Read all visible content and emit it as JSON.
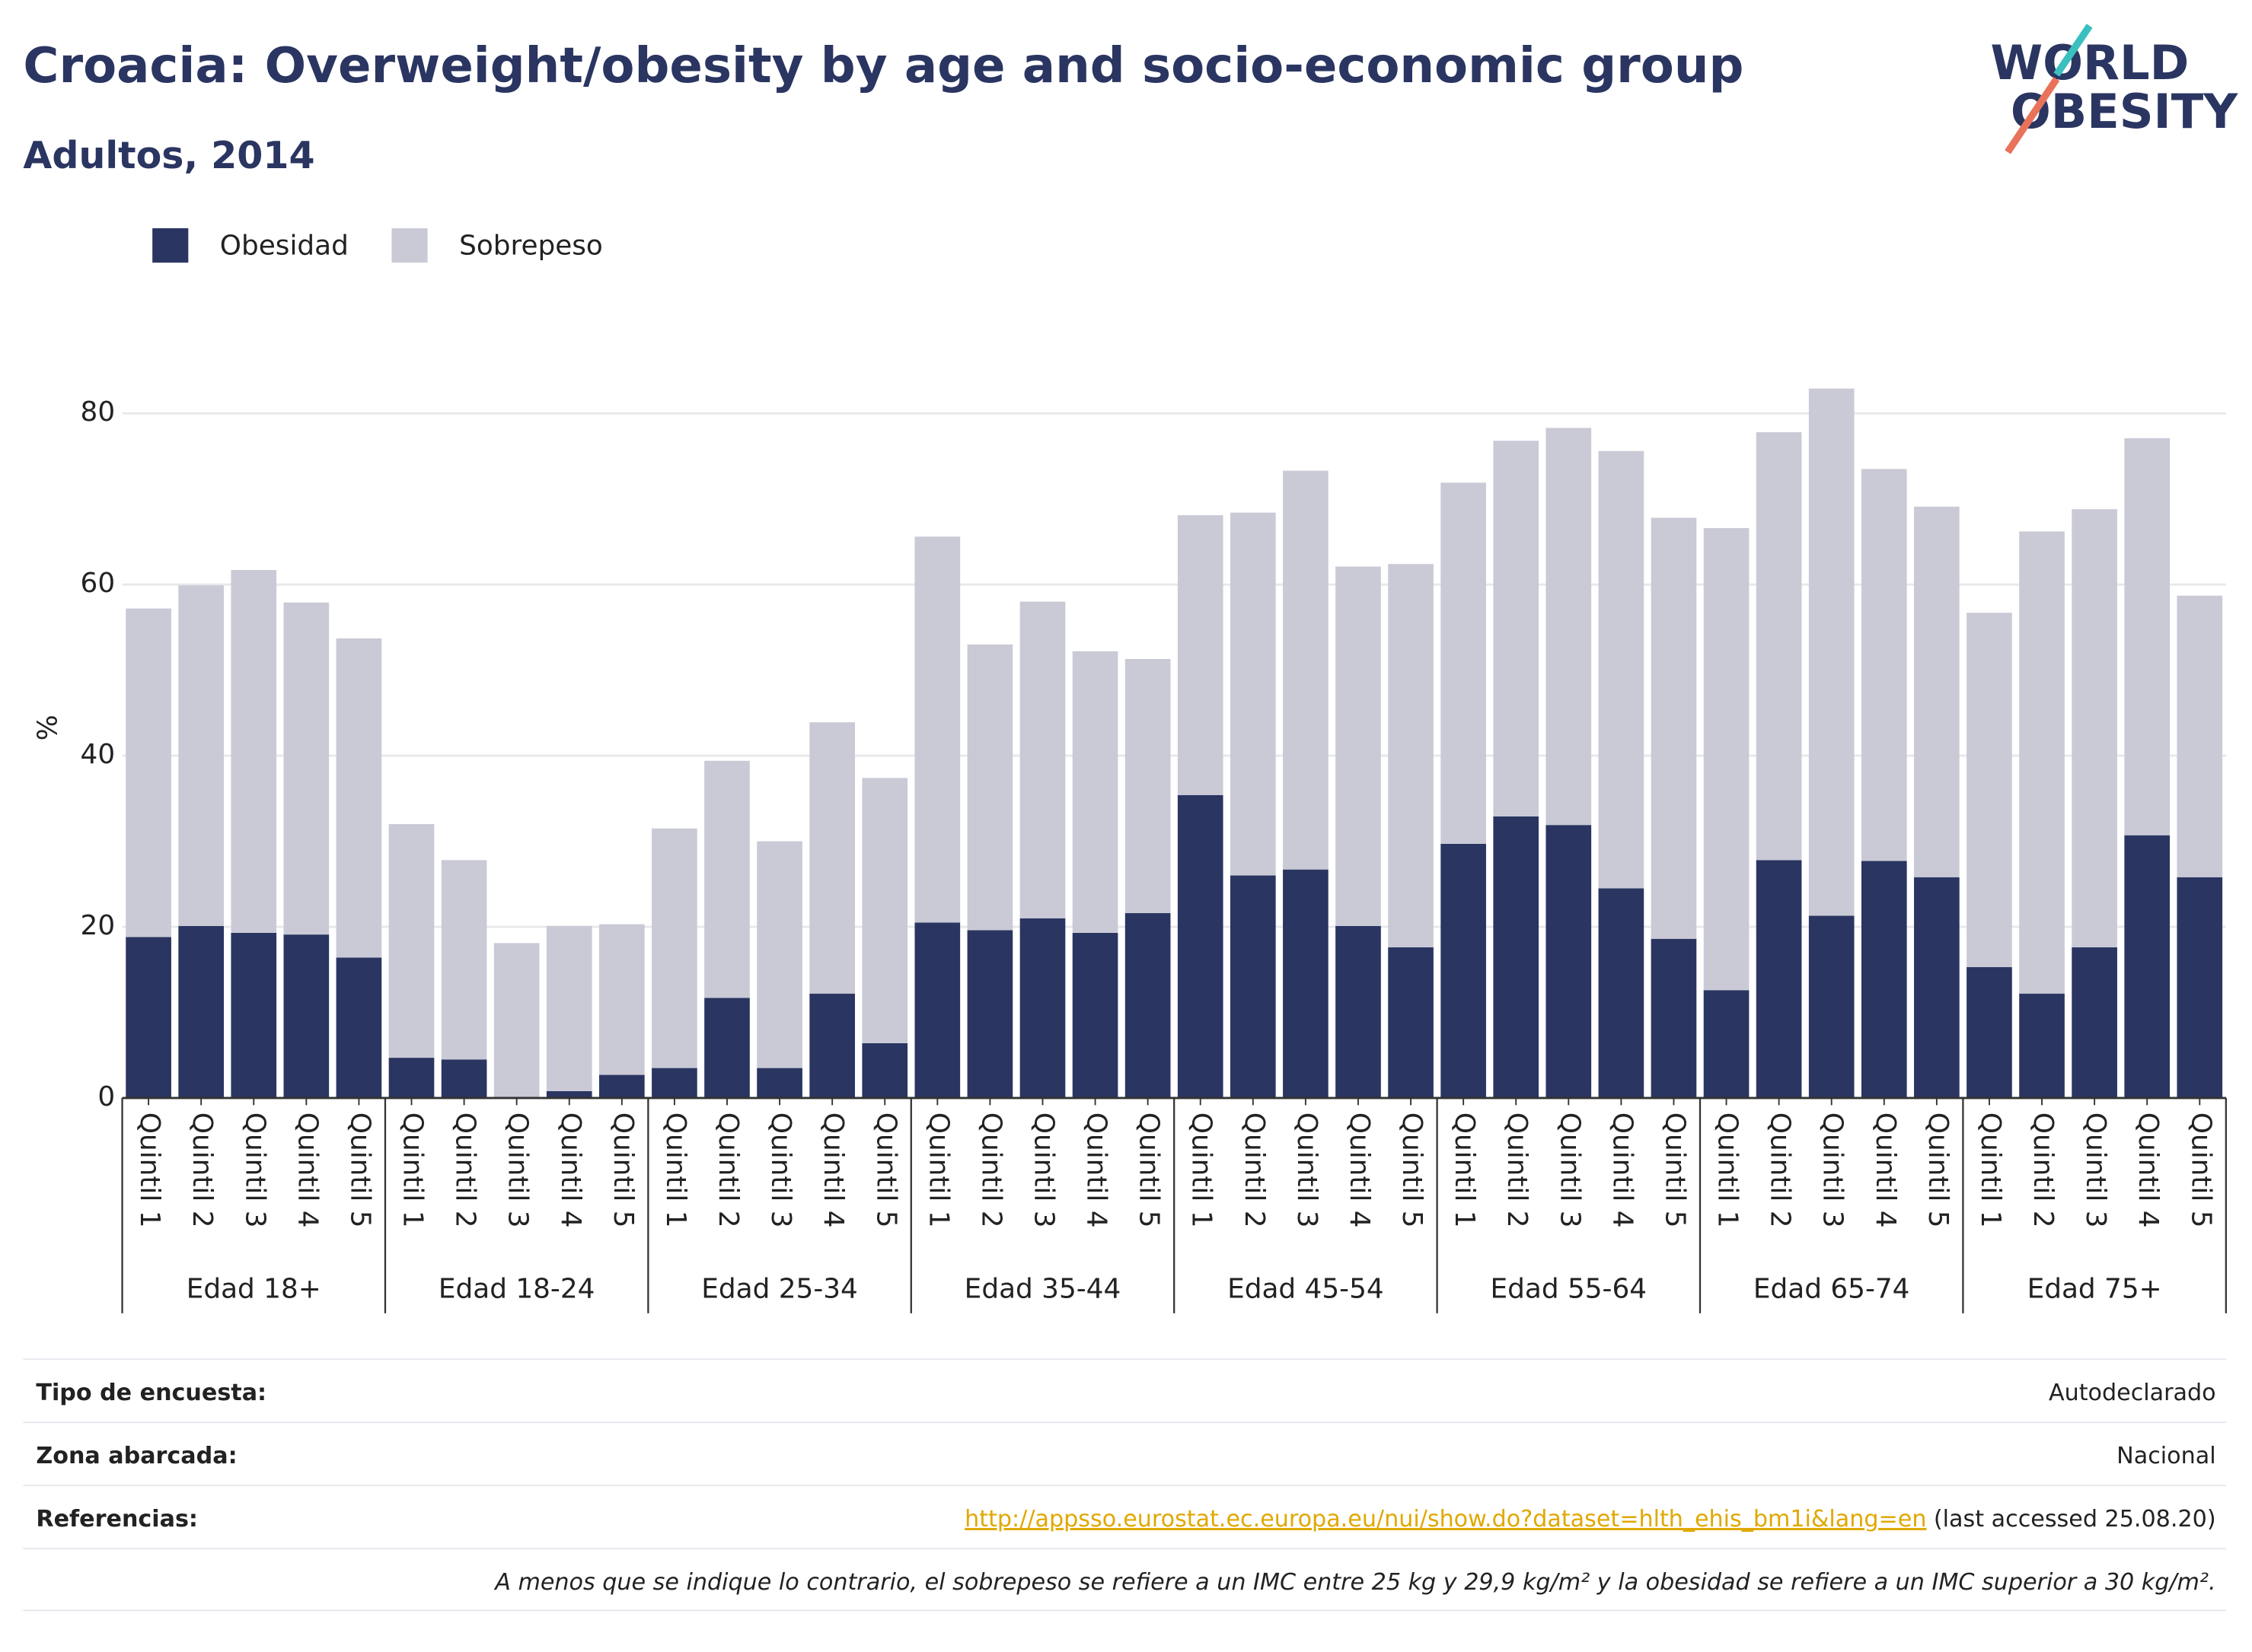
{
  "chart_data": {
    "type": "bar",
    "stacked": true,
    "title": "Croacia: Overweight/obesity by age and socio-economic group",
    "subtitle": "Adultos, 2014",
    "ylabel": "%",
    "categories": [
      "Quintil 1",
      "Quintil 2",
      "Quintil 3",
      "Quintil 4",
      "Quintil 5",
      "Quintil 1",
      "Quintil 2",
      "Quintil 3",
      "Quintil 4",
      "Quintil 5",
      "Quintil 1",
      "Quintil 2",
      "Quintil 3",
      "Quintil 4",
      "Quintil 5",
      "Quintil 1",
      "Quintil 2",
      "Quintil 3",
      "Quintil 4",
      "Quintil 5",
      "Quintil 1",
      "Quintil 2",
      "Quintil 3",
      "Quintil 4",
      "Quintil 5",
      "Quintil 1",
      "Quintil 2",
      "Quintil 3",
      "Quintil 4",
      "Quintil 5",
      "Quintil 1",
      "Quintil 2",
      "Quintil 3",
      "Quintil 4",
      "Quintil 5",
      "Quintil 1",
      "Quintil 2",
      "Quintil 3",
      "Quintil 4",
      "Quintil 5"
    ],
    "groups": [
      "Edad 18+",
      "Edad 18-24",
      "Edad 25-34",
      "Edad 35-44",
      "Edad 45-54",
      "Edad 55-64",
      "Edad 65-74",
      "Edad 75+"
    ],
    "series": [
      {
        "name": "Obesidad",
        "color": "#2a3561",
        "values": [
          18.8,
          20.1,
          19.3,
          19.1,
          16.4,
          4.7,
          4.5,
          0,
          0.8,
          2.7,
          3.5,
          11.7,
          3.5,
          12.2,
          6.4,
          20.5,
          19.6,
          21.0,
          19.3,
          21.6,
          35.4,
          26.0,
          26.7,
          20.1,
          17.6,
          29.7,
          32.9,
          31.9,
          24.5,
          18.6,
          12.6,
          27.8,
          21.3,
          27.7,
          25.8,
          15.3,
          12.2,
          17.6,
          30.7,
          25.8
        ]
      },
      {
        "name": "Sobrepeso",
        "color": "#c9cad6",
        "values": [
          38.4,
          39.8,
          42.4,
          38.8,
          37.3,
          27.3,
          23.3,
          18.1,
          19.3,
          17.6,
          28.0,
          27.7,
          26.5,
          31.7,
          31.0,
          45.1,
          33.4,
          37.0,
          32.9,
          29.7,
          32.7,
          42.4,
          46.6,
          42.0,
          44.8,
          42.2,
          43.9,
          46.4,
          51.1,
          49.2,
          54.0,
          50.0,
          61.6,
          45.8,
          43.3,
          41.4,
          54.0,
          51.2,
          46.4,
          32.9
        ]
      }
    ],
    "ylim": [
      0,
      85
    ],
    "yticks": [
      0,
      20,
      40,
      60,
      80
    ],
    "grid": true,
    "legend": "top-left"
  },
  "logo": {
    "line1": "WORLD",
    "line2": "OBESITY"
  },
  "footer": {
    "survey": {
      "label": "Tipo de encuesta:",
      "value": "Autodeclarado"
    },
    "area": {
      "label": "Zona abarcada:",
      "value": "Nacional"
    },
    "references": {
      "label": "Referencias:",
      "link": "http://appsso.eurostat.ec.europa.eu/nui/show.do?dataset=hlth_ehis_bm1i&lang=en",
      "note": "(last accessed 25.08.20)"
    },
    "disclaimer": "A menos que se indique lo contrario, el sobrepeso se refiere a un IMC entre 25 kg y 29,9 kg/m² y la obesidad se refiere a un IMC superior a 30 kg/m²."
  }
}
